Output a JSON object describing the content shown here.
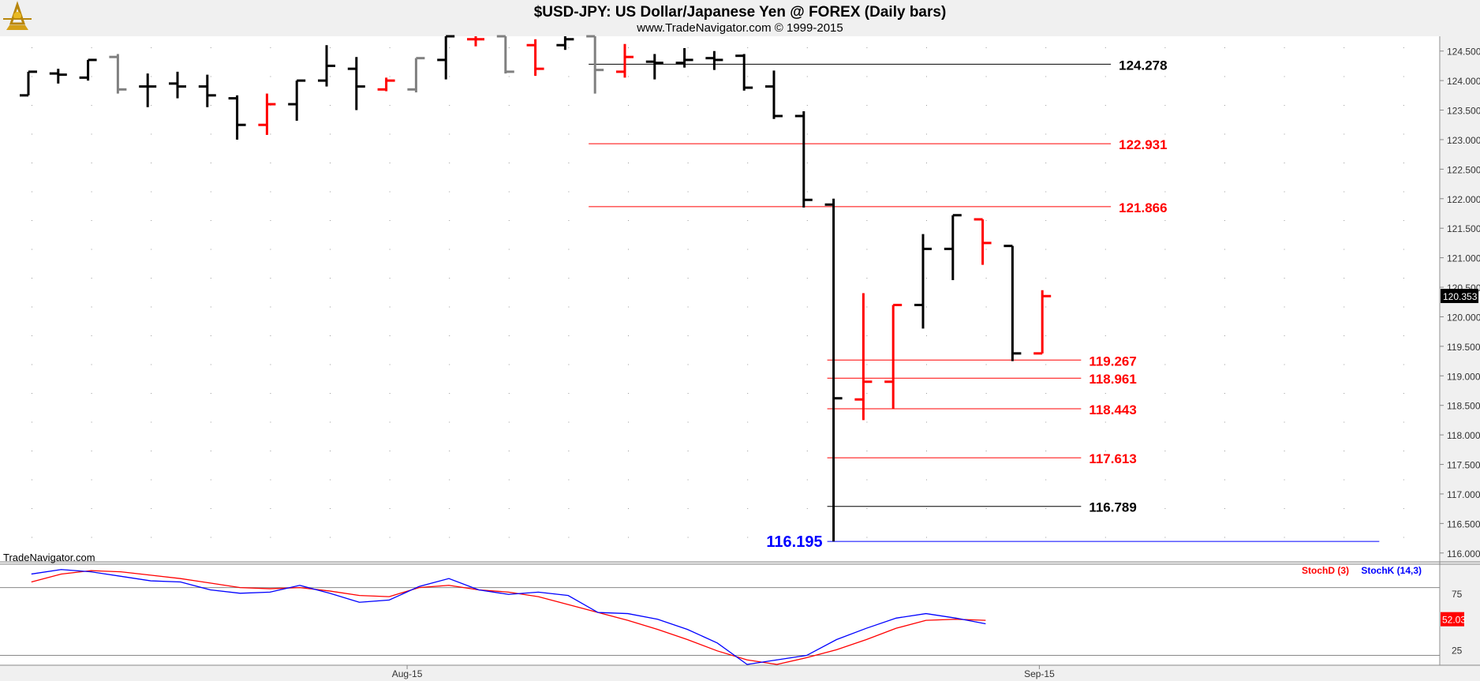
{
  "header": {
    "title": "$USD-JPY:  US Dollar/Japanese Yen @ FOREX  (Daily bars)",
    "subtitle": "www.TradeNavigator.com © 1999-2015"
  },
  "watermark": "TradeNavigator.com",
  "colors": {
    "up": "#000000",
    "down": "#ff0000",
    "neutral": "#808080",
    "blue": "#0000ff",
    "red_level": "#ff0000",
    "black_level": "#000000",
    "panel_bg": "#ffffff",
    "frame_bg": "#f0f0f0"
  },
  "chart_data": [
    {
      "type": "ohlc",
      "title": "$USD-JPY:  US Dollar/Japanese Yen @ FOREX  (Daily bars)",
      "ylim": [
        115.85,
        124.75
      ],
      "y_ticks": [
        "116.000",
        "116.500",
        "117.000",
        "117.500",
        "118.000",
        "118.500",
        "119.000",
        "119.500",
        "120.000",
        "120.500",
        "121.000",
        "121.500",
        "122.000",
        "122.500",
        "123.000",
        "123.500",
        "124.000",
        "124.500"
      ],
      "x_ticks": [
        {
          "label": "Aug-15",
          "bar": 12.7
        },
        {
          "label": "Sep-15",
          "bar": 33.9
        }
      ],
      "last_price": "120.353",
      "bars": [
        {
          "o": 123.75,
          "h": 124.15,
          "l": 123.75,
          "c": 124.15,
          "color": "black"
        },
        {
          "o": 124.12,
          "h": 124.2,
          "l": 123.95,
          "c": 124.1,
          "color": "black"
        },
        {
          "o": 124.05,
          "h": 124.35,
          "l": 124.0,
          "c": 124.35,
          "color": "black"
        },
        {
          "o": 124.4,
          "h": 124.45,
          "l": 123.78,
          "c": 123.85,
          "color": "gray"
        },
        {
          "o": 123.9,
          "h": 124.12,
          "l": 123.55,
          "c": 123.9,
          "color": "black"
        },
        {
          "o": 123.95,
          "h": 124.15,
          "l": 123.7,
          "c": 123.9,
          "color": "black"
        },
        {
          "o": 123.9,
          "h": 124.1,
          "l": 123.55,
          "c": 123.75,
          "color": "black"
        },
        {
          "o": 123.7,
          "h": 123.75,
          "l": 123.0,
          "c": 123.25,
          "color": "black"
        },
        {
          "o": 123.25,
          "h": 123.78,
          "l": 123.08,
          "c": 123.6,
          "color": "red"
        },
        {
          "o": 123.6,
          "h": 124.0,
          "l": 123.32,
          "c": 124.0,
          "color": "black"
        },
        {
          "o": 124.0,
          "h": 124.6,
          "l": 123.9,
          "c": 124.25,
          "color": "black"
        },
        {
          "o": 124.2,
          "h": 124.4,
          "l": 123.5,
          "c": 123.9,
          "color": "black"
        },
        {
          "o": 123.85,
          "h": 124.05,
          "l": 123.82,
          "c": 124.0,
          "color": "red"
        },
        {
          "o": 123.85,
          "h": 124.38,
          "l": 123.8,
          "c": 124.38,
          "color": "gray"
        },
        {
          "o": 124.35,
          "h": 124.75,
          "l": 124.02,
          "c": 124.75,
          "color": "black"
        },
        {
          "o": 124.7,
          "h": 124.75,
          "l": 124.58,
          "c": 124.7,
          "color": "red"
        },
        {
          "o": 124.75,
          "h": 124.75,
          "l": 124.12,
          "c": 124.15,
          "color": "gray"
        },
        {
          "o": 124.6,
          "h": 124.7,
          "l": 124.08,
          "c": 124.2,
          "color": "red"
        },
        {
          "o": 124.6,
          "h": 124.75,
          "l": 124.52,
          "c": 124.7,
          "color": "black"
        },
        {
          "o": 124.75,
          "h": 124.75,
          "l": 123.78,
          "c": 124.18,
          "color": "gray"
        },
        {
          "o": 124.15,
          "h": 124.62,
          "l": 124.05,
          "c": 124.4,
          "color": "red"
        },
        {
          "o": 124.32,
          "h": 124.45,
          "l": 124.02,
          "c": 124.3,
          "color": "black"
        },
        {
          "o": 124.3,
          "h": 124.55,
          "l": 124.22,
          "c": 124.35,
          "color": "black"
        },
        {
          "o": 124.38,
          "h": 124.5,
          "l": 124.18,
          "c": 124.35,
          "color": "black"
        },
        {
          "o": 124.42,
          "h": 124.45,
          "l": 123.83,
          "c": 123.88,
          "color": "black"
        },
        {
          "o": 123.9,
          "h": 124.17,
          "l": 123.35,
          "c": 123.4,
          "color": "black"
        },
        {
          "o": 123.4,
          "h": 123.48,
          "l": 121.85,
          "c": 121.98,
          "color": "black"
        },
        {
          "o": 121.9,
          "h": 122.0,
          "l": 116.195,
          "c": 118.62,
          "color": "black"
        },
        {
          "o": 118.6,
          "h": 120.4,
          "l": 118.25,
          "c": 118.9,
          "color": "red"
        },
        {
          "o": 118.9,
          "h": 120.2,
          "l": 118.45,
          "c": 120.2,
          "color": "red"
        },
        {
          "o": 120.2,
          "h": 121.4,
          "l": 119.8,
          "c": 121.15,
          "color": "black"
        },
        {
          "o": 121.15,
          "h": 121.72,
          "l": 120.62,
          "c": 121.72,
          "color": "black"
        },
        {
          "o": 121.65,
          "h": 121.65,
          "l": 120.88,
          "c": 121.25,
          "color": "red"
        },
        {
          "o": 121.2,
          "h": 121.2,
          "l": 119.25,
          "c": 119.38,
          "color": "black"
        },
        {
          "o": 119.38,
          "h": 120.45,
          "l": 119.38,
          "c": 120.35,
          "color": "red"
        }
      ],
      "levels": [
        {
          "value": 124.278,
          "label": "124.278",
          "color": "black",
          "from": 19.0,
          "to": 36.3
        },
        {
          "value": 122.931,
          "label": "122.931",
          "color": "red",
          "from": 19.0,
          "to": 36.3
        },
        {
          "value": 121.866,
          "label": "121.866",
          "color": "red",
          "from": 19.0,
          "to": 36.3
        },
        {
          "value": 119.267,
          "label": "119.267",
          "color": "red",
          "from": 27.0,
          "to": 35.3
        },
        {
          "value": 118.961,
          "label": "118.961",
          "color": "red",
          "from": 27.0,
          "to": 35.3
        },
        {
          "value": 118.443,
          "label": "118.443",
          "color": "red",
          "from": 27.0,
          "to": 35.3
        },
        {
          "value": 117.613,
          "label": "117.613",
          "color": "red",
          "from": 27.0,
          "to": 35.3
        },
        {
          "value": 116.789,
          "label": "116.789",
          "color": "black",
          "from": 27.0,
          "to": 35.3
        },
        {
          "value": 116.195,
          "label": "116.195",
          "color": "blue",
          "from": 27.0,
          "to": 45.3
        }
      ]
    },
    {
      "type": "line",
      "ylim": [
        12,
        100
      ],
      "y_ticks": [
        "75",
        "25"
      ],
      "ref_lines": [
        80,
        20
      ],
      "last_value": "52.03",
      "series": [
        {
          "name": "StochD (3)",
          "color": "red",
          "values": [
            85,
            92,
            95,
            94,
            91,
            88,
            84,
            80,
            79,
            80,
            77,
            73,
            72,
            80,
            82,
            78,
            76,
            72,
            65,
            58,
            51,
            43,
            34,
            24,
            16,
            12,
            18,
            25,
            34,
            44,
            51,
            52,
            51
          ]
        },
        {
          "name": "StochK (14,3)",
          "color": "blue",
          "values": [
            92,
            96,
            94,
            90,
            86,
            85,
            78,
            75,
            76,
            82,
            75,
            67,
            69,
            81,
            88,
            78,
            74,
            76,
            73,
            58,
            57,
            52,
            43,
            31,
            12,
            16,
            20,
            34,
            44,
            53,
            57,
            53,
            48
          ]
        }
      ]
    }
  ]
}
